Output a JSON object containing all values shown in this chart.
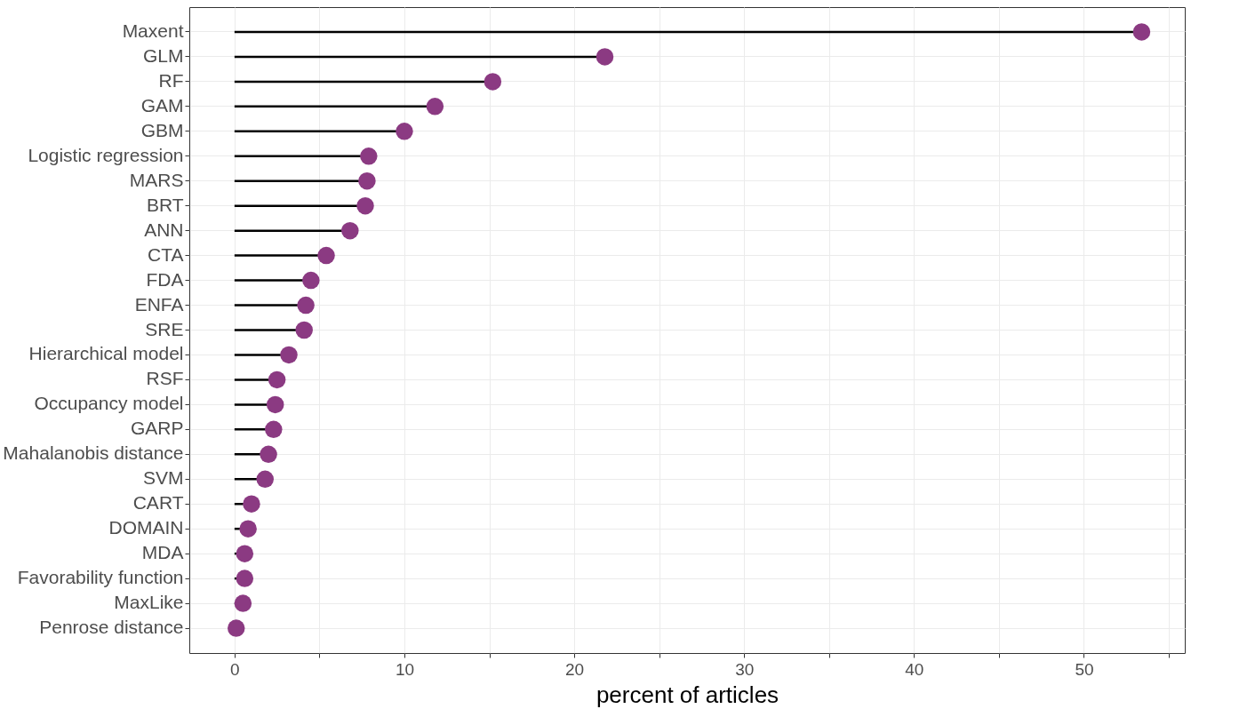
{
  "chart_data": {
    "type": "lollipop",
    "orientation": "horizontal",
    "xlabel": "percent of articles",
    "categories": [
      "Maxent",
      "GLM",
      "RF",
      "GAM",
      "GBM",
      "Logistic regression",
      "MARS",
      "BRT",
      "ANN",
      "CTA",
      "FDA",
      "ENFA",
      "SRE",
      "Hierarchical model",
      "RSF",
      "Occupancy model",
      "GARP",
      "Mahalanobis distance",
      "SVM",
      "CART",
      "DOMAIN",
      "MDA",
      "Favorability function",
      "MaxLike",
      "Penrose distance"
    ],
    "values": [
      53.4,
      21.8,
      15.2,
      11.8,
      10.0,
      7.9,
      7.8,
      7.7,
      6.8,
      5.4,
      4.5,
      4.2,
      4.1,
      3.2,
      2.5,
      2.4,
      2.3,
      2.0,
      1.8,
      1.0,
      0.8,
      0.6,
      0.6,
      0.5,
      0.1
    ],
    "color": "#8b3a82",
    "marker": "circle",
    "grid": true,
    "xlim": [
      -2.66,
      55.94
    ],
    "xticks": [
      0,
      {
        "value": 5,
        "label": null
      },
      10,
      {
        "value": 15,
        "label": null
      },
      20,
      {
        "value": 25,
        "label": null
      },
      30,
      {
        "value": 35,
        "label": null
      },
      40,
      {
        "value": 45,
        "label": null
      },
      50,
      {
        "value": 55,
        "label": null
      }
    ]
  }
}
